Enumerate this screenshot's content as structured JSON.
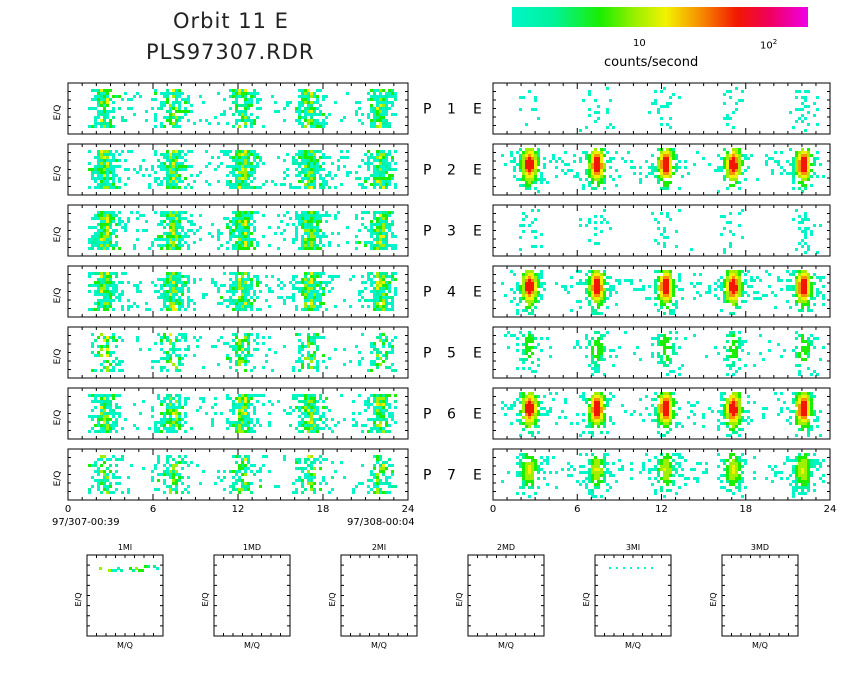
{
  "header": {
    "title_line1": "Orbit 11 E",
    "title_line2": "PLS97307.RDR"
  },
  "colorbar": {
    "tick_1": "10",
    "tick_2_base": "10",
    "tick_2_exp": "2",
    "label": "counts/second"
  },
  "timeline": {
    "start_label": "97/307-00:39",
    "end_label": "97/308-00:04"
  },
  "colors": [
    "#00f6c8",
    "#00f29a",
    "#1bee00",
    "#9ef000",
    "#f2f200",
    "#f79300",
    "#f21800",
    "#f0005c",
    "#f000e8"
  ],
  "chart_data": [
    {
      "type": "heatmap",
      "description_of_panels": "spectrograms",
      "ylabel": "E/Q",
      "xlim": [
        0,
        24
      ],
      "xticks": [
        0,
        6,
        12,
        18,
        24
      ],
      "rows": [
        {
          "left_label": "P",
          "num": "1",
          "right_label": "E"
        },
        {
          "left_label": "P",
          "num": "2",
          "right_label": "E"
        },
        {
          "left_label": "P",
          "num": "3",
          "right_label": "E"
        },
        {
          "left_label": "P",
          "num": "4",
          "right_label": "E"
        },
        {
          "left_label": "P",
          "num": "5",
          "right_label": "E"
        },
        {
          "left_label": "P",
          "num": "6",
          "right_label": "E"
        },
        {
          "left_label": "P",
          "num": "7",
          "right_label": "E"
        }
      ],
      "left_bursts_hours": [
        2.5,
        7.3,
        12.2,
        17.0,
        22.0
      ],
      "right_bursts_hours": [
        2.5,
        7.3,
        12.2,
        17.0,
        22.0
      ]
    },
    {
      "type": "heatmap",
      "panels": [
        {
          "title": "1MI",
          "xlabel": "M/Q",
          "ylabel": "E/Q"
        },
        {
          "title": "1MD",
          "xlabel": "M/Q",
          "ylabel": "E/Q"
        },
        {
          "title": "2MI",
          "xlabel": "M/Q",
          "ylabel": "E/Q"
        },
        {
          "title": "2MD",
          "xlabel": "M/Q",
          "ylabel": "E/Q"
        },
        {
          "title": "3MI",
          "xlabel": "M/Q",
          "ylabel": "E/Q"
        },
        {
          "title": "3MD",
          "xlabel": "M/Q",
          "ylabel": "E/Q"
        }
      ]
    }
  ]
}
